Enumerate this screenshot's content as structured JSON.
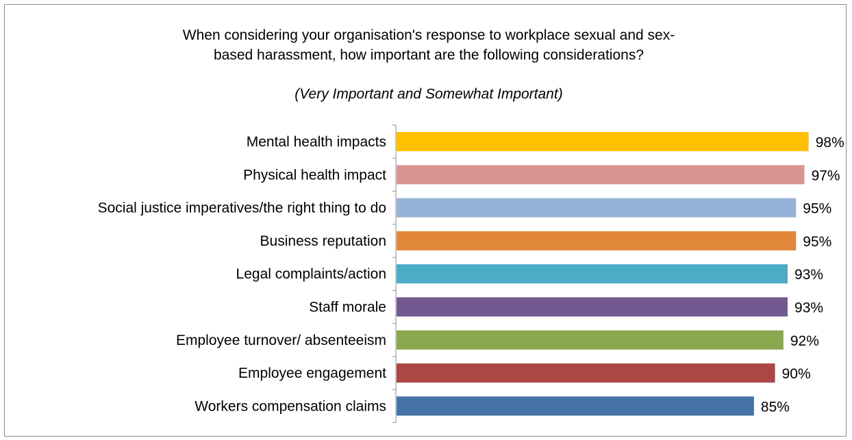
{
  "chart_data": {
    "type": "bar",
    "orientation": "horizontal",
    "title_lines": [
      "When considering your organisation's response to workplace sexual and sex-",
      "based harassment, how important are the following considerations?"
    ],
    "subtitle": "(Very Important and Somewhat Important)",
    "categories": [
      "Mental health impacts",
      "Physical health impact",
      "Social justice imperatives/the right thing to do",
      "Business reputation",
      "Legal complaints/action",
      "Staff morale",
      "Employee turnover/ absenteeism",
      "Employee engagement",
      "Workers compensation claims"
    ],
    "values": [
      98,
      97,
      95,
      95,
      93,
      93,
      92,
      90,
      85
    ],
    "value_labels": [
      "98%",
      "97%",
      "95%",
      "95%",
      "93%",
      "93%",
      "92%",
      "90%",
      "85%"
    ],
    "colors": [
      "#FFC000",
      "#D99594",
      "#95B3D7",
      "#E0873A",
      "#4BACC6",
      "#725990",
      "#8AA84D",
      "#AC4745",
      "#4573A7"
    ],
    "value_axis_visible": false,
    "grid": false,
    "legend": "none"
  }
}
